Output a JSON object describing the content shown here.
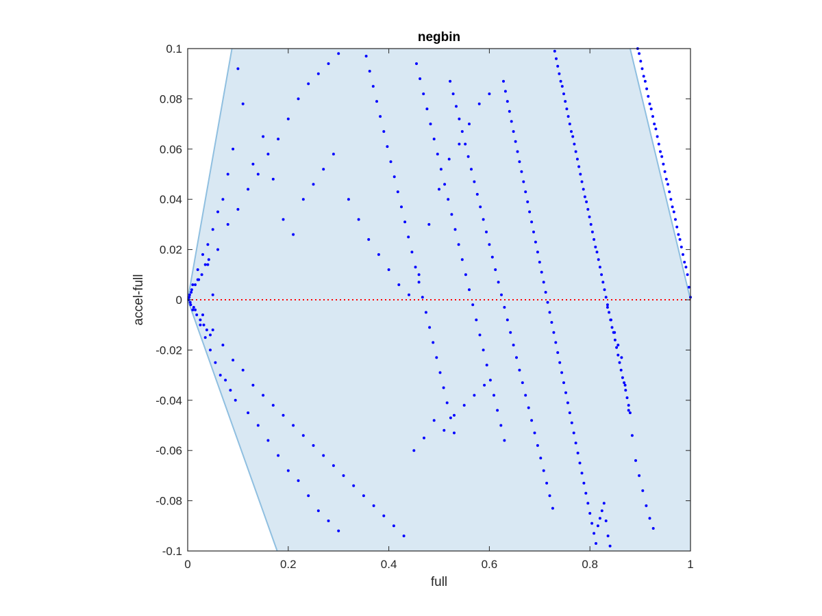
{
  "chart_data": {
    "type": "scatter",
    "title": "negbin",
    "xlabel": "full",
    "ylabel": "accel-full",
    "xlim": [
      0,
      1
    ],
    "ylim": [
      -0.1,
      0.1
    ],
    "xticks": [
      0,
      0.2,
      0.4,
      0.6,
      0.8,
      1
    ],
    "xtick_labels": [
      "0",
      "0.2",
      "0.4",
      "0.6",
      "0.8",
      "1"
    ],
    "yticks": [
      -0.1,
      -0.08,
      -0.06,
      -0.04,
      -0.02,
      0,
      0.02,
      0.04,
      0.06,
      0.08,
      0.1
    ],
    "ytick_labels": [
      "-0.1",
      "-0.08",
      "-0.06",
      "-0.04",
      "-0.02",
      "0",
      "0.02",
      "0.04",
      "0.06",
      "0.08",
      "0.1"
    ],
    "grid": false,
    "reference_line": {
      "y": 0,
      "style": "dotted",
      "color": "#ff0000"
    },
    "colors": {
      "points": "#0000ff",
      "region_fill": "#d9e8f3",
      "region_edge": "#8fbfe0",
      "axes": "#262626"
    },
    "shaded_region": {
      "description": "feasible band",
      "vertices": [
        [
          0,
          0
        ],
        [
          0.088,
          0.1
        ],
        [
          0.88,
          0.1
        ],
        [
          1,
          0
        ],
        [
          1,
          -0.1
        ],
        [
          0.178,
          -0.1
        ]
      ]
    },
    "series": [
      {
        "marker": "dot",
        "x": [
          0.895,
          0.898,
          0.901,
          0.904,
          0.907,
          0.91,
          0.913,
          0.916,
          0.919,
          0.922,
          0.925,
          0.928,
          0.931,
          0.934,
          0.937,
          0.94,
          0.943,
          0.946,
          0.949,
          0.952,
          0.955,
          0.958,
          0.961,
          0.964,
          0.967,
          0.97,
          0.973,
          0.976,
          0.979,
          0.982,
          0.985,
          0.988,
          0.991,
          0.994,
          0.997,
          1.0,
          0.73,
          0.733,
          0.736,
          0.739,
          0.742,
          0.745,
          0.748,
          0.751,
          0.754,
          0.757,
          0.76,
          0.763,
          0.766,
          0.769,
          0.772,
          0.775,
          0.778,
          0.781,
          0.784,
          0.787,
          0.79,
          0.793,
          0.796,
          0.799,
          0.802,
          0.805,
          0.808,
          0.811,
          0.814,
          0.817,
          0.82,
          0.823,
          0.826,
          0.829,
          0.832,
          0.835,
          0.838,
          0.841,
          0.844,
          0.847,
          0.85,
          0.853,
          0.856,
          0.859,
          0.862,
          0.865,
          0.868,
          0.871,
          0.874,
          0.877,
          0.88,
          0.628,
          0.632,
          0.636,
          0.64,
          0.644,
          0.648,
          0.652,
          0.656,
          0.66,
          0.664,
          0.668,
          0.672,
          0.676,
          0.68,
          0.684,
          0.688,
          0.692,
          0.696,
          0.7,
          0.704,
          0.708,
          0.712,
          0.716,
          0.72,
          0.724,
          0.728,
          0.732,
          0.736,
          0.74,
          0.744,
          0.748,
          0.752,
          0.756,
          0.76,
          0.764,
          0.768,
          0.772,
          0.776,
          0.78,
          0.784,
          0.788,
          0.792,
          0.796,
          0.8,
          0.804,
          0.808,
          0.812,
          0.816,
          0.82,
          0.824,
          0.828,
          0.832,
          0.836,
          0.84,
          0.522,
          0.528,
          0.534,
          0.54,
          0.546,
          0.552,
          0.558,
          0.564,
          0.57,
          0.576,
          0.582,
          0.588,
          0.594,
          0.6,
          0.606,
          0.612,
          0.618,
          0.624,
          0.63,
          0.636,
          0.642,
          0.648,
          0.654,
          0.66,
          0.666,
          0.672,
          0.678,
          0.684,
          0.69,
          0.696,
          0.702,
          0.708,
          0.714,
          0.72,
          0.726,
          0.455,
          0.462,
          0.469,
          0.476,
          0.483,
          0.49,
          0.497,
          0.504,
          0.511,
          0.518,
          0.525,
          0.532,
          0.539,
          0.546,
          0.553,
          0.56,
          0.567,
          0.574,
          0.581,
          0.588,
          0.595,
          0.602,
          0.609,
          0.616,
          0.623,
          0.63,
          0.355,
          0.362,
          0.369,
          0.376,
          0.383,
          0.39,
          0.397,
          0.404,
          0.411,
          0.418,
          0.425,
          0.432,
          0.439,
          0.446,
          0.453,
          0.46,
          0.467,
          0.474,
          0.481,
          0.488,
          0.495,
          0.502,
          0.509,
          0.516,
          0.523,
          0.53,
          0.835,
          0.842,
          0.849,
          0.856,
          0.863,
          0.87,
          0.877,
          0.884,
          0.891,
          0.898,
          0.905,
          0.912,
          0.919,
          0.926,
          0.01,
          0.015,
          0.02,
          0.025,
          0.03,
          0.035,
          0.04,
          0.045,
          0.05,
          0.055,
          0.06,
          0.065,
          0.07,
          0.075,
          0.08,
          0.085,
          0.09,
          0.095,
          0.1,
          0.11,
          0.12,
          0.13,
          0.14,
          0.15,
          0.16,
          0.17,
          0.18,
          0.19,
          0.2,
          0.21,
          0.22,
          0.23,
          0.24,
          0.25,
          0.26,
          0.27,
          0.28,
          0.29,
          0.3,
          0.02,
          0.03,
          0.04,
          0.05,
          0.06,
          0.07,
          0.08,
          0.09,
          0.1,
          0.11,
          0.12,
          0.13,
          0.14,
          0.15,
          0.16,
          0.17,
          0.18,
          0.19,
          0.2,
          0.21,
          0.22,
          0.23,
          0.24,
          0.25,
          0.26,
          0.27,
          0.28,
          0.29,
          0.3,
          0.31,
          0.32,
          0.33,
          0.34,
          0.35,
          0.36,
          0.37,
          0.38,
          0.39,
          0.4,
          0.41,
          0.42,
          0.43,
          0.44,
          0.45,
          0.46,
          0.47,
          0.48,
          0.49,
          0.5,
          0.51,
          0.52,
          0.53,
          0.54,
          0.55,
          0.56,
          0.57,
          0.58,
          0.59,
          0.6,
          0.002,
          0.004,
          0.006,
          0.008,
          0.01,
          0.003,
          0.005,
          0.007,
          0.012,
          0.015,
          0.018,
          0.022,
          0.025,
          0.028,
          0.032,
          0.035,
          0.038,
          0.042,
          0.045,
          0.05
        ],
        "y": [
          0.1,
          0.098,
          0.095,
          0.092,
          0.089,
          0.087,
          0.084,
          0.081,
          0.078,
          0.076,
          0.073,
          0.07,
          0.068,
          0.065,
          0.062,
          0.059,
          0.057,
          0.054,
          0.051,
          0.048,
          0.046,
          0.043,
          0.04,
          0.037,
          0.035,
          0.032,
          0.029,
          0.026,
          0.024,
          0.021,
          0.018,
          0.015,
          0.013,
          0.01,
          0.005,
          0.001,
          0.099,
          0.096,
          0.093,
          0.09,
          0.087,
          0.085,
          0.082,
          0.079,
          0.076,
          0.073,
          0.07,
          0.067,
          0.065,
          0.062,
          0.059,
          0.056,
          0.053,
          0.05,
          0.047,
          0.044,
          0.041,
          0.039,
          0.036,
          0.033,
          0.03,
          0.027,
          0.024,
          0.021,
          0.019,
          0.016,
          0.013,
          0.01,
          0.007,
          0.004,
          0.001,
          -0.002,
          -0.005,
          -0.008,
          -0.011,
          -0.013,
          -0.016,
          -0.019,
          -0.022,
          -0.025,
          -0.028,
          -0.031,
          -0.033,
          -0.036,
          -0.039,
          -0.042,
          -0.045,
          0.087,
          0.083,
          0.079,
          0.075,
          0.071,
          0.067,
          0.063,
          0.059,
          0.055,
          0.051,
          0.047,
          0.043,
          0.039,
          0.035,
          0.031,
          0.027,
          0.023,
          0.019,
          0.015,
          0.011,
          0.007,
          0.003,
          -0.001,
          -0.005,
          -0.009,
          -0.013,
          -0.017,
          -0.021,
          -0.025,
          -0.029,
          -0.033,
          -0.037,
          -0.041,
          -0.045,
          -0.049,
          -0.053,
          -0.057,
          -0.061,
          -0.065,
          -0.069,
          -0.073,
          -0.077,
          -0.081,
          -0.085,
          -0.089,
          -0.093,
          -0.097,
          -0.09,
          -0.087,
          -0.084,
          -0.081,
          -0.088,
          -0.094,
          -0.098,
          0.087,
          0.082,
          0.077,
          0.072,
          0.067,
          0.062,
          0.057,
          0.052,
          0.047,
          0.042,
          0.037,
          0.032,
          0.027,
          0.022,
          0.017,
          0.012,
          0.007,
          0.002,
          -0.003,
          -0.008,
          -0.013,
          -0.018,
          -0.023,
          -0.028,
          -0.033,
          -0.038,
          -0.043,
          -0.048,
          -0.053,
          -0.058,
          -0.063,
          -0.068,
          -0.073,
          -0.078,
          -0.083,
          0.094,
          0.088,
          0.082,
          0.076,
          0.07,
          0.064,
          0.058,
          0.052,
          0.046,
          0.04,
          0.034,
          0.028,
          0.022,
          0.016,
          0.01,
          0.004,
          -0.002,
          -0.008,
          -0.014,
          -0.02,
          -0.026,
          -0.032,
          -0.038,
          -0.044,
          -0.05,
          -0.056,
          0.097,
          0.091,
          0.085,
          0.079,
          0.073,
          0.067,
          0.061,
          0.055,
          0.049,
          0.043,
          0.037,
          0.031,
          0.025,
          0.019,
          0.013,
          0.007,
          0.001,
          -0.005,
          -0.011,
          -0.017,
          -0.023,
          -0.029,
          -0.035,
          -0.041,
          -0.047,
          -0.053,
          -0.003,
          -0.008,
          -0.013,
          -0.018,
          -0.023,
          -0.034,
          -0.044,
          -0.054,
          -0.064,
          -0.07,
          -0.076,
          -0.082,
          -0.087,
          -0.091,
          0.006,
          -0.004,
          0.012,
          -0.01,
          0.018,
          -0.015,
          0.022,
          -0.02,
          0.028,
          -0.025,
          0.035,
          -0.03,
          0.04,
          -0.032,
          0.05,
          -0.036,
          0.06,
          -0.04,
          0.092,
          0.078,
          -0.045,
          0.054,
          -0.05,
          0.065,
          -0.056,
          0.048,
          -0.062,
          0.032,
          -0.068,
          0.026,
          -0.072,
          0.04,
          -0.078,
          0.046,
          -0.084,
          0.052,
          -0.088,
          0.058,
          -0.092,
          0.008,
          -0.006,
          0.014,
          -0.012,
          0.02,
          -0.018,
          0.03,
          -0.024,
          0.036,
          -0.028,
          0.044,
          -0.034,
          0.05,
          -0.038,
          0.058,
          -0.042,
          0.064,
          -0.046,
          0.072,
          -0.05,
          0.08,
          -0.054,
          0.086,
          -0.058,
          0.09,
          -0.062,
          0.094,
          -0.066,
          0.098,
          -0.07,
          0.04,
          -0.074,
          0.032,
          -0.078,
          0.024,
          -0.082,
          0.018,
          -0.086,
          0.012,
          -0.09,
          0.006,
          -0.094,
          0.002,
          -0.06,
          0.01,
          -0.055,
          0.03,
          -0.048,
          0.044,
          -0.052,
          0.056,
          -0.046,
          0.062,
          -0.042,
          0.07,
          -0.038,
          0.078,
          -0.034,
          0.082,
          0.0,
          0.002,
          -0.002,
          0.004,
          -0.004,
          0.001,
          -0.001,
          0.003,
          -0.003,
          0.006,
          -0.006,
          0.008,
          -0.008,
          0.01,
          -0.01,
          0.014,
          -0.012,
          0.016,
          -0.014,
          0.002
        ]
      }
    ]
  }
}
